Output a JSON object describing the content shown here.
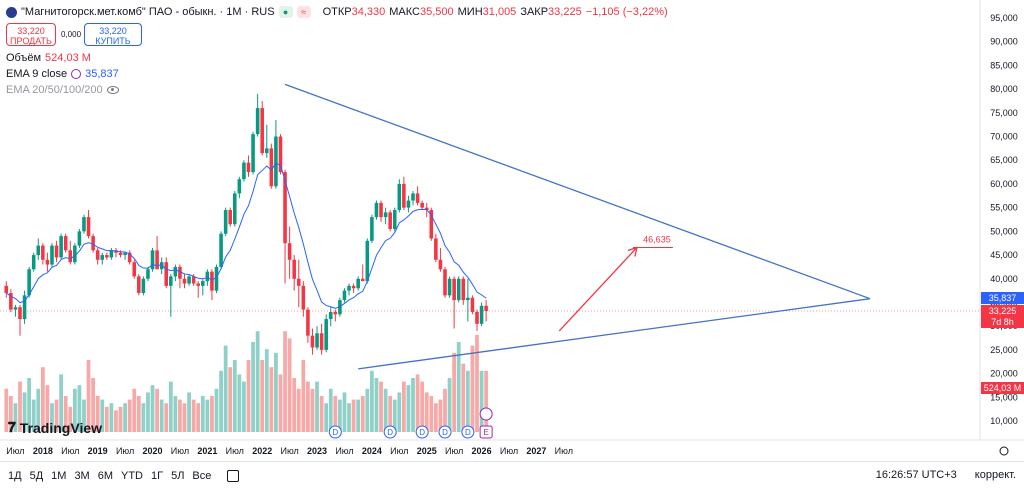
{
  "header": {
    "symbol_name": "\"Магнитогорск.мет.комб\" ПАО - обыкн. · 1M · RUS",
    "ohlc": [
      {
        "k": "ОТКР",
        "v": "34,330"
      },
      {
        "k": "МАКС",
        "v": "35,500"
      },
      {
        "k": "МИН",
        "v": "31,005"
      },
      {
        "k": "ЗАКР",
        "v": "33,225"
      }
    ],
    "change": "−1,105 (−3,22%)"
  },
  "trade": {
    "sell_price": "33,220",
    "sell_label": "ПРОДАТЬ",
    "spread": "0,000",
    "buy_price": "33,220",
    "buy_label": "КУПИТЬ"
  },
  "indicators": {
    "volume_label": "Объём",
    "volume_value": "524,03 M",
    "ema_label": "EMA 9 close",
    "ema_value": "35,837",
    "ema_multi_label": "EMA 20/50/100/200"
  },
  "logo_text": "TradingView",
  "bottom_bar": {
    "timeframes": [
      "1Д",
      "5Д",
      "1М",
      "3М",
      "6М",
      "YTD",
      "1Г",
      "5Л",
      "Все"
    ],
    "clock": "16:26:57 UTC+3",
    "adjust": "коррект."
  },
  "colors": {
    "up": "#089981",
    "down": "#f23645",
    "ema": "#2962ff",
    "trend": "#4472c4",
    "vol_up": "#8fd1c8",
    "vol_down": "#f7a9a7"
  },
  "right_axis_badges": {
    "ema": "35,837",
    "close": "33,225",
    "countdown": "7d 8h",
    "volume": "524,03 M"
  },
  "chart_data": {
    "type": "candlestick",
    "interval": "1M",
    "y_axis": {
      "min": 5000,
      "max": 97000,
      "ticks": [
        "95,000",
        "90,000",
        "85,000",
        "80,000",
        "75,000",
        "70,000",
        "65,000",
        "60,000",
        "55,000",
        "50,000",
        "45,000",
        "40,000",
        "35,000",
        "30,000",
        "25,000",
        "20,000",
        "15,000",
        "10,000"
      ]
    },
    "x_axis_labels": [
      "Июл",
      "2018",
      "Июл",
      "2019",
      "Июл",
      "2020",
      "Июл",
      "2021",
      "Июл",
      "2022",
      "Июл",
      "2023",
      "Июл",
      "2024",
      "Июл",
      "2025",
      "Июл",
      "2026",
      "Июл",
      "2027",
      "Июл"
    ],
    "x_axis_dates": [
      "2017-07",
      "2018-01",
      "2018-07",
      "2019-01",
      "2019-07",
      "2020-01",
      "2020-07",
      "2021-01",
      "2021-07",
      "2022-01",
      "2022-07",
      "2023-01",
      "2023-07",
      "2024-01",
      "2024-07",
      "2025-01",
      "2025-07",
      "2026-01",
      "2026-07",
      "2027-01",
      "2027-07"
    ],
    "first_bar": "2017-05",
    "candles": [
      [
        38.5,
        39.5,
        36.0,
        37.0
      ],
      [
        37.0,
        37.8,
        33.0,
        33.5
      ],
      [
        33.5,
        34.5,
        32.0,
        34.0
      ],
      [
        34.0,
        34.5,
        28.0,
        31.5
      ],
      [
        31.5,
        37.5,
        30.5,
        36.5
      ],
      [
        36.5,
        42.5,
        36.0,
        42.0
      ],
      [
        42.0,
        45.5,
        41.5,
        45.0
      ],
      [
        45.0,
        48.5,
        44.0,
        47.0
      ],
      [
        47.0,
        47.5,
        43.0,
        44.0
      ],
      [
        44.0,
        45.5,
        41.5,
        43.0
      ],
      [
        43.0,
        47.5,
        42.5,
        47.0
      ],
      [
        47.0,
        48.0,
        43.5,
        44.5
      ],
      [
        44.5,
        49.5,
        44.0,
        49.0
      ],
      [
        49.0,
        49.5,
        45.5,
        46.0
      ],
      [
        46.0,
        48.0,
        43.0,
        43.5
      ],
      [
        43.5,
        47.5,
        43.0,
        47.0
      ],
      [
        47.0,
        50.5,
        46.5,
        50.0
      ],
      [
        50.0,
        53.5,
        49.5,
        53.0
      ],
      [
        53.0,
        54.5,
        48.5,
        49.0
      ],
      [
        49.0,
        49.5,
        45.5,
        46.0
      ],
      [
        46.0,
        46.5,
        43.0,
        44.0
      ],
      [
        44.0,
        45.5,
        43.0,
        45.0
      ],
      [
        45.0,
        45.5,
        44.0,
        44.5
      ],
      [
        44.5,
        46.5,
        44.0,
        46.0
      ],
      [
        46.0,
        46.5,
        44.5,
        45.5
      ],
      [
        45.5,
        46.0,
        44.5,
        45.0
      ],
      [
        45.0,
        45.5,
        44.0,
        45.5
      ],
      [
        45.5,
        46.0,
        43.0,
        43.5
      ],
      [
        43.5,
        44.0,
        40.0,
        40.5
      ],
      [
        40.5,
        41.0,
        36.5,
        37.0
      ],
      [
        37.0,
        40.5,
        36.5,
        40.0
      ],
      [
        40.0,
        42.5,
        39.5,
        42.0
      ],
      [
        42.0,
        46.5,
        41.5,
        46.0
      ],
      [
        46.0,
        49.0,
        45.5,
        42.0
      ],
      [
        42.0,
        44.5,
        41.0,
        43.5
      ],
      [
        43.5,
        44.5,
        38.0,
        38.5
      ],
      [
        38.5,
        41.0,
        32.0,
        40.5
      ],
      [
        40.5,
        43.0,
        39.5,
        42.5
      ],
      [
        42.5,
        43.0,
        38.0,
        40.0
      ],
      [
        40.0,
        41.0,
        38.0,
        39.0
      ],
      [
        39.0,
        41.0,
        38.5,
        40.5
      ],
      [
        40.5,
        41.0,
        38.5,
        39.0
      ],
      [
        39.0,
        39.5,
        36.0,
        38.5
      ],
      [
        38.5,
        40.0,
        36.5,
        39.5
      ],
      [
        39.5,
        42.0,
        38.5,
        41.5
      ],
      [
        41.5,
        42.0,
        35.5,
        37.5
      ],
      [
        37.5,
        43.0,
        37.0,
        42.5
      ],
      [
        42.5,
        50.0,
        42.0,
        49.5
      ],
      [
        49.5,
        55.0,
        49.0,
        54.5
      ],
      [
        54.5,
        55.0,
        51.0,
        51.5
      ],
      [
        51.5,
        58.5,
        51.0,
        58.0
      ],
      [
        58.0,
        61.5,
        57.0,
        61.0
      ],
      [
        61.0,
        65.0,
        60.5,
        64.5
      ],
      [
        64.5,
        66.0,
        61.5,
        62.5
      ],
      [
        62.5,
        71.0,
        62.0,
        70.5
      ],
      [
        70.5,
        79.0,
        70.0,
        76.0
      ],
      [
        76.0,
        77.5,
        66.0,
        66.5
      ],
      [
        66.5,
        72.5,
        65.5,
        67.5
      ],
      [
        67.5,
        68.5,
        59.0,
        59.5
      ],
      [
        59.5,
        73.5,
        59.0,
        70.0
      ],
      [
        70.0,
        70.5,
        62.0,
        62.5
      ],
      [
        62.5,
        63.0,
        39.0,
        47.5
      ],
      [
        47.5,
        51.0,
        40.0,
        44.0
      ],
      [
        44.0,
        45.0,
        37.5,
        40.0
      ],
      [
        40.0,
        44.0,
        34.0,
        38.5
      ],
      [
        38.5,
        39.5,
        32.0,
        33.5
      ],
      [
        33.5,
        34.0,
        26.5,
        28.0
      ],
      [
        28.0,
        29.5,
        24.0,
        25.5
      ],
      [
        25.5,
        30.0,
        25.0,
        28.5
      ],
      [
        28.5,
        30.5,
        24.0,
        25.0
      ],
      [
        25.0,
        32.5,
        24.5,
        31.5
      ],
      [
        31.5,
        34.0,
        30.0,
        33.0
      ],
      [
        33.0,
        33.5,
        31.0,
        32.5
      ],
      [
        32.5,
        36.0,
        32.0,
        35.5
      ],
      [
        35.5,
        38.0,
        35.0,
        37.5
      ],
      [
        37.5,
        39.0,
        36.5,
        38.5
      ],
      [
        38.5,
        39.0,
        37.0,
        38.0
      ],
      [
        38.0,
        40.5,
        37.5,
        40.0
      ],
      [
        40.0,
        43.0,
        39.5,
        39.5
      ],
      [
        39.5,
        48.5,
        39.0,
        48.0
      ],
      [
        48.0,
        53.5,
        47.5,
        53.0
      ],
      [
        53.0,
        56.5,
        52.5,
        56.0
      ],
      [
        56.0,
        56.5,
        52.0,
        53.0
      ],
      [
        53.0,
        55.0,
        51.5,
        54.0
      ],
      [
        54.0,
        54.5,
        50.0,
        50.5
      ],
      [
        50.5,
        55.0,
        50.0,
        54.5
      ],
      [
        54.5,
        61.0,
        54.0,
        60.0
      ],
      [
        60.0,
        61.5,
        54.5,
        55.0
      ],
      [
        55.0,
        57.5,
        54.0,
        56.5
      ],
      [
        56.5,
        58.5,
        55.5,
        58.0
      ],
      [
        58.0,
        59.5,
        55.5,
        56.0
      ],
      [
        56.0,
        56.5,
        54.5,
        55.0
      ],
      [
        55.0,
        56.0,
        53.0,
        54.5
      ],
      [
        54.5,
        55.0,
        48.0,
        48.5
      ],
      [
        48.5,
        49.5,
        43.5,
        44.0
      ],
      [
        44.0,
        46.5,
        41.5,
        42.0
      ],
      [
        42.0,
        42.5,
        36.0,
        36.5
      ],
      [
        36.5,
        40.5,
        36.0,
        40.0
      ],
      [
        40.0,
        40.5,
        29.5,
        35.5
      ],
      [
        35.5,
        40.5,
        35.0,
        40.0
      ],
      [
        40.0,
        40.5,
        34.5,
        35.5
      ],
      [
        35.5,
        40.0,
        31.0,
        36.0
      ],
      [
        36.0,
        36.5,
        32.5,
        33.0
      ],
      [
        33.0,
        33.5,
        29.0,
        30.5
      ],
      [
        30.5,
        35.0,
        30.0,
        34.3
      ],
      [
        34.3,
        35.5,
        31.0,
        33.2
      ]
    ],
    "volume": [
      12,
      10,
      8,
      14,
      11,
      15,
      9,
      12,
      18,
      13,
      8,
      9,
      16,
      10,
      7,
      12,
      13,
      9,
      20,
      15,
      10,
      9,
      7,
      8,
      6,
      7,
      8,
      9,
      12,
      10,
      8,
      11,
      13,
      12,
      9,
      8,
      14,
      10,
      9,
      8,
      11,
      9,
      8,
      10,
      9,
      10,
      12,
      17,
      24,
      18,
      20,
      16,
      14,
      20,
      25,
      28,
      20,
      23,
      18,
      22,
      16,
      28,
      26,
      15,
      12,
      20,
      14,
      12,
      14,
      10,
      8,
      12,
      10,
      9,
      11,
      8,
      9,
      9,
      10,
      12,
      17,
      15,
      14,
      12,
      10,
      9,
      11,
      14,
      13,
      15,
      16,
      14,
      11,
      10,
      8,
      9,
      12,
      15,
      22,
      25,
      19,
      17,
      24,
      27,
      17,
      17
    ],
    "ema9_close": 35.837,
    "trendlines": [
      {
        "from": {
          "bar": 61,
          "price": 81.0
        },
        "to": {
          "bar": 189,
          "price": 35.8
        }
      },
      {
        "from": {
          "bar": 77,
          "price": 21.0
        },
        "to": {
          "bar": 189,
          "price": 35.8
        }
      }
    ],
    "target_arrow": {
      "from_bar": 121,
      "from_price": 29.0,
      "to_bar": 138,
      "to_price": 46.6,
      "label": "46,635"
    },
    "events": {
      "dividend_marker": "D",
      "earnings_marker": "E"
    }
  }
}
